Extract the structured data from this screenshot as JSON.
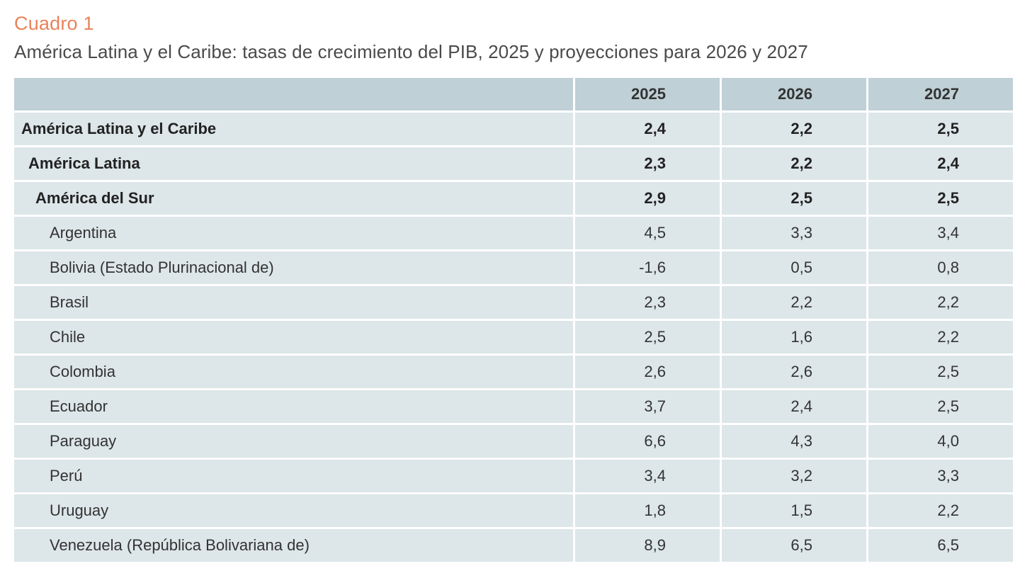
{
  "document": {
    "label": "Cuadro 1",
    "title": "América Latina y el Caribe: tasas de crecimiento del PIB, 2025 y proyecciones para 2026 y 2027"
  },
  "table": {
    "columns": [
      "",
      "2025",
      "2026",
      "2027"
    ],
    "rows": [
      {
        "name": "América Latina y el Caribe",
        "level": 0,
        "bold": true,
        "v2025": "2,4",
        "v2026": "2,2",
        "v2027": "2,5"
      },
      {
        "name": "América Latina",
        "level": 1,
        "bold": true,
        "v2025": "2,3",
        "v2026": "2,2",
        "v2027": "2,4"
      },
      {
        "name": "América del Sur",
        "level": 2,
        "bold": true,
        "v2025": "2,9",
        "v2026": "2,5",
        "v2027": "2,5"
      },
      {
        "name": "Argentina",
        "level": 3,
        "bold": false,
        "v2025": "4,5",
        "v2026": "3,3",
        "v2027": "3,4"
      },
      {
        "name": "Bolivia (Estado Plurinacional de)",
        "level": 3,
        "bold": false,
        "v2025": "-1,6",
        "v2026": "0,5",
        "v2027": "0,8"
      },
      {
        "name": "Brasil",
        "level": 3,
        "bold": false,
        "v2025": "2,3",
        "v2026": "2,2",
        "v2027": "2,2"
      },
      {
        "name": "Chile",
        "level": 3,
        "bold": false,
        "v2025": "2,5",
        "v2026": "1,6",
        "v2027": "2,2"
      },
      {
        "name": "Colombia",
        "level": 3,
        "bold": false,
        "v2025": "2,6",
        "v2026": "2,6",
        "v2027": "2,5"
      },
      {
        "name": "Ecuador",
        "level": 3,
        "bold": false,
        "v2025": "3,7",
        "v2026": "2,4",
        "v2027": "2,5"
      },
      {
        "name": "Paraguay",
        "level": 3,
        "bold": false,
        "v2025": "6,6",
        "v2026": "4,3",
        "v2027": "4,0"
      },
      {
        "name": "Perú",
        "level": 3,
        "bold": false,
        "v2025": "3,4",
        "v2026": "3,2",
        "v2027": "3,3"
      },
      {
        "name": "Uruguay",
        "level": 3,
        "bold": false,
        "v2025": "1,8",
        "v2026": "1,5",
        "v2027": "2,2"
      },
      {
        "name": "Venezuela (República Bolivariana de)",
        "level": 3,
        "bold": false,
        "v2025": "8,9",
        "v2026": "6,5",
        "v2027": "6,5"
      }
    ]
  },
  "colors": {
    "label": "#e8835a",
    "header_bg": "#bfd0d6",
    "row_bg": "#dde6e9"
  }
}
